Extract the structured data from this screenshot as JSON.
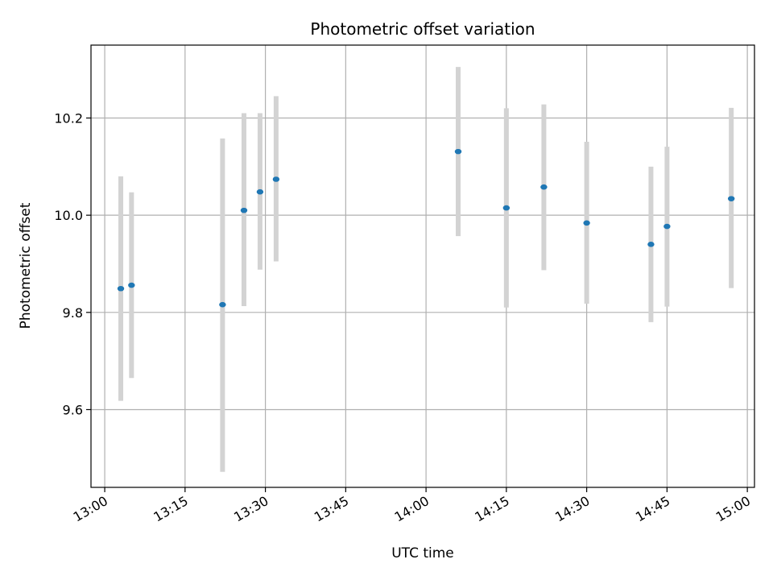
{
  "chart_data": {
    "type": "scatter",
    "title": "Photometric offset variation",
    "xlabel": "UTC time",
    "ylabel": "Photometric offset",
    "x_ticks": [
      "13:00",
      "13:15",
      "13:30",
      "13:45",
      "14:00",
      "14:15",
      "14:30",
      "14:45",
      "15:00"
    ],
    "y_ticks": [
      9.6,
      9.8,
      10.0,
      10.2
    ],
    "y_tick_labels": [
      "9.6",
      "9.8",
      "10.0",
      "10.2"
    ],
    "xlim": [
      "12:57:26",
      "15:01:20"
    ],
    "ylim": [
      9.44,
      10.35
    ],
    "grid": true,
    "legend": false,
    "point_color": "#1f77b4",
    "errorbar_color": "#d3d3d3",
    "series": [
      {
        "points": [
          {
            "x": "13:03",
            "y": 9.849,
            "ylow": 9.618,
            "yhigh": 10.08
          },
          {
            "x": "13:05",
            "y": 9.856,
            "ylow": 9.665,
            "yhigh": 10.047
          },
          {
            "x": "13:22",
            "y": 9.816,
            "ylow": 9.472,
            "yhigh": 10.158
          },
          {
            "x": "13:26",
            "y": 10.01,
            "ylow": 9.813,
            "yhigh": 10.21
          },
          {
            "x": "13:29",
            "y": 10.048,
            "ylow": 9.888,
            "yhigh": 10.21
          },
          {
            "x": "13:32",
            "y": 10.074,
            "ylow": 9.905,
            "yhigh": 10.245
          },
          {
            "x": "14:06",
            "y": 10.131,
            "ylow": 9.957,
            "yhigh": 10.305
          },
          {
            "x": "14:15",
            "y": 10.015,
            "ylow": 9.81,
            "yhigh": 10.22
          },
          {
            "x": "14:22",
            "y": 10.058,
            "ylow": 9.887,
            "yhigh": 10.228
          },
          {
            "x": "14:30",
            "y": 9.984,
            "ylow": 9.818,
            "yhigh": 10.151
          },
          {
            "x": "14:42",
            "y": 9.94,
            "ylow": 9.78,
            "yhigh": 10.1
          },
          {
            "x": "14:45",
            "y": 9.977,
            "ylow": 9.812,
            "yhigh": 10.141
          },
          {
            "x": "14:57",
            "y": 10.034,
            "ylow": 9.85,
            "yhigh": 10.221
          }
        ]
      }
    ]
  }
}
